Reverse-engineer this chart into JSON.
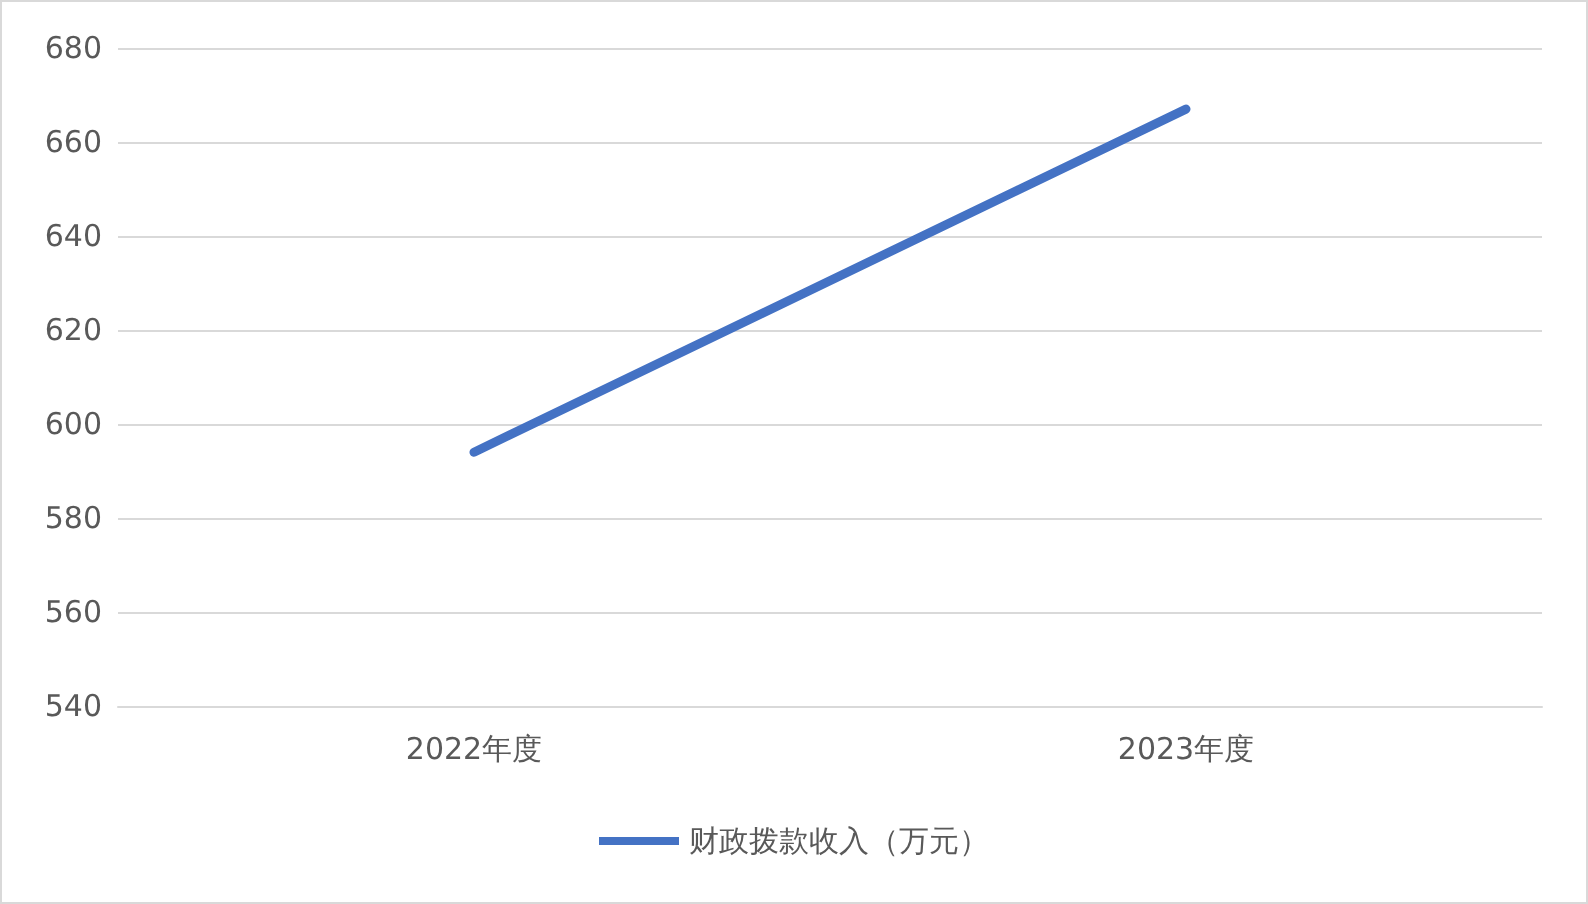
{
  "chart_data": {
    "type": "line",
    "categories": [
      "2022年度",
      "2023年度"
    ],
    "series": [
      {
        "name": "财政拨款收入（万元）",
        "color": "#4472c4",
        "values": [
          594,
          667
        ]
      }
    ],
    "ylim": [
      540,
      680
    ],
    "yticks": [
      540,
      560,
      580,
      600,
      620,
      640,
      660,
      680
    ],
    "grid": "y",
    "legend": "bottom",
    "marker": "none",
    "line_style": "solid"
  }
}
